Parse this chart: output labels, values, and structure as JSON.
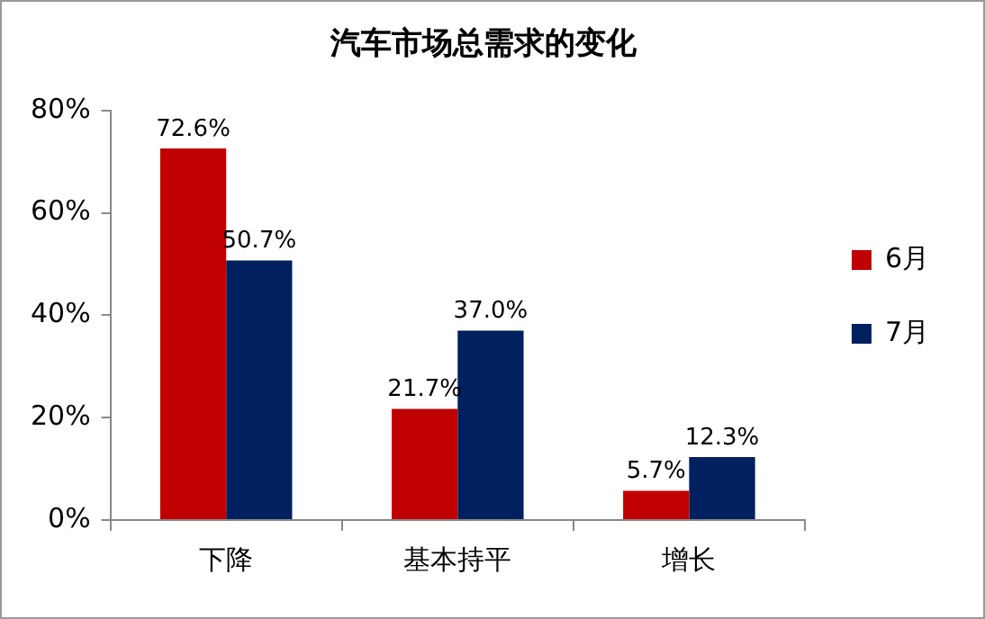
{
  "chart_data": {
    "type": "bar",
    "title": "汽车市场总需求的变化",
    "categories": [
      "下降",
      "基本持平",
      "增长"
    ],
    "series": [
      {
        "name": "6月",
        "color": "#c00000",
        "values": [
          72.6,
          21.7,
          5.7
        ],
        "value_labels": [
          "72.6%",
          "21.7%",
          "5.7%"
        ]
      },
      {
        "name": "7月",
        "color": "#002060",
        "values": [
          50.7,
          37.0,
          12.3
        ],
        "value_labels": [
          "50.7%",
          "37.0%",
          "12.3%"
        ]
      }
    ],
    "ylim": [
      0,
      80
    ],
    "yticks": [
      {
        "value": 0,
        "label": "0%"
      },
      {
        "value": 20,
        "label": "20%"
      },
      {
        "value": 40,
        "label": "40%"
      },
      {
        "value": 60,
        "label": "60%"
      },
      {
        "value": 80,
        "label": "80%"
      }
    ],
    "grid": false,
    "legend": "right"
  }
}
